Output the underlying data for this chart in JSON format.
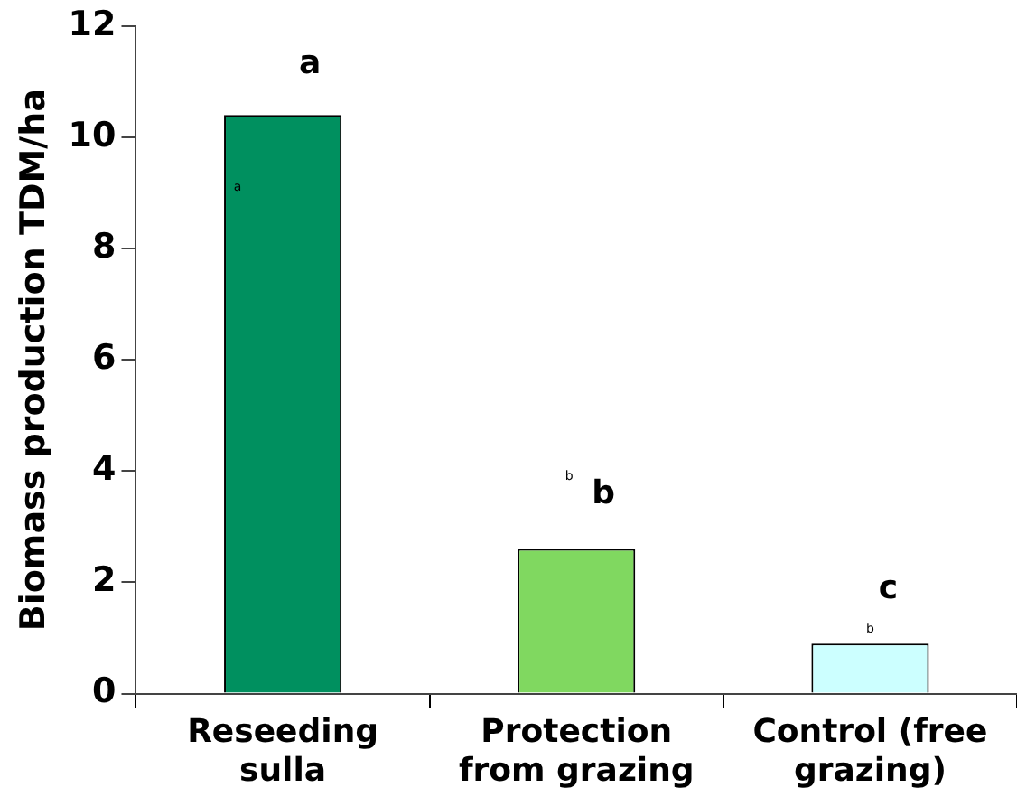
{
  "chart_data": {
    "type": "bar",
    "ylabel": "Biomass production TDM/ha",
    "categories": [
      "Reseeding sulla",
      "Protection from grazing",
      "Control (free grazing)"
    ],
    "values": [
      10.4,
      2.6,
      0.9
    ],
    "colors": [
      "#00905f",
      "#80d860",
      "#ccffff"
    ],
    "ylim": [
      0,
      12
    ],
    "yticks": [
      0,
      2,
      4,
      6,
      8,
      10,
      12
    ],
    "grid": false,
    "legend": false,
    "annotations": [
      "a",
      "b",
      "c",
      "a",
      "b",
      "b"
    ]
  }
}
